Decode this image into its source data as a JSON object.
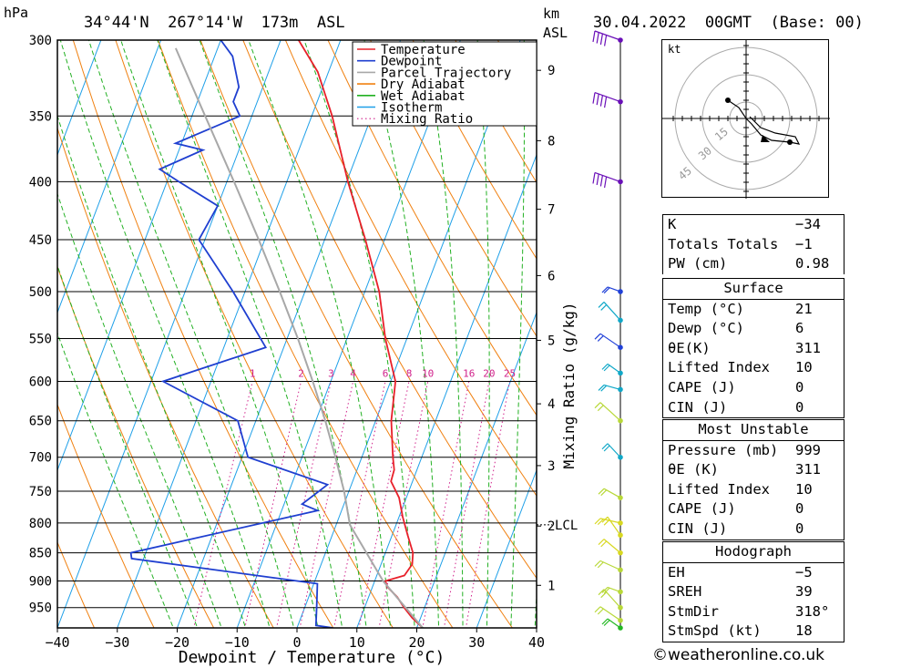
{
  "header": {
    "pressure_unit": "hPa",
    "location": "34°44'N  267°14'W  173m  ASL",
    "km_unit": "km",
    "asl_unit": "ASL",
    "datetime": "30.04.2022  00GMT  (Base: 00)"
  },
  "chart_data": {
    "type": "line",
    "title": "",
    "xlabel": "Dewpoint / Temperature (°C)",
    "ylabel": "hPa",
    "right_label": "Mixing Ratio (g/kg)",
    "xlim": [
      -40,
      40
    ],
    "ylim": [
      990,
      300
    ],
    "y_scale": "log",
    "grid": true,
    "pressure_ticks": [
      300,
      350,
      400,
      450,
      500,
      550,
      600,
      650,
      700,
      750,
      800,
      850,
      900,
      950
    ],
    "temperature_ticks": [
      -40,
      -30,
      -20,
      -10,
      0,
      10,
      20,
      30,
      40
    ],
    "temperature_tick_labels": [
      "−40",
      "−30",
      "−20",
      "−10",
      "0",
      "10",
      "20",
      "30",
      "40"
    ],
    "km_ticks": [
      {
        "label": "9",
        "p": 319
      },
      {
        "label": "8",
        "p": 368
      },
      {
        "label": "7",
        "p": 423
      },
      {
        "label": "6",
        "p": 484
      },
      {
        "label": "5",
        "p": 552
      },
      {
        "label": "4",
        "p": 628
      },
      {
        "label": "3",
        "p": 712
      },
      {
        "label": "2",
        "p": 805
      },
      {
        "label": "1",
        "p": 908
      }
    ],
    "lcl": {
      "label": "LCL",
      "p": 803
    },
    "mixing_ratio_labels": [
      {
        "label": "1",
        "value": 1
      },
      {
        "label": "2",
        "value": 2
      },
      {
        "label": "3",
        "value": 3
      },
      {
        "label": "4",
        "value": 4
      },
      {
        "label": "6",
        "value": 6
      },
      {
        "label": "8",
        "value": 8
      },
      {
        "label": "10",
        "value": 10
      },
      {
        "label": "16",
        "value": 16
      },
      {
        "label": "20",
        "value": 20
      },
      {
        "label": "25",
        "value": 25
      }
    ],
    "legend": {
      "placement": "top-center",
      "entries": [
        {
          "name": "Temperature",
          "color": "#e8202a",
          "style": "solid"
        },
        {
          "name": "Dewpoint",
          "color": "#1f3fd0",
          "style": "solid"
        },
        {
          "name": "Parcel Trajectory",
          "color": "#a8a8a8",
          "style": "solid"
        },
        {
          "name": "Dry Adiabat",
          "color": "#f08010",
          "style": "solid"
        },
        {
          "name": "Wet Adiabat",
          "color": "#22b022",
          "style": "solid"
        },
        {
          "name": "Isotherm",
          "color": "#1fa0e8",
          "style": "solid"
        },
        {
          "name": "Mixing Ratio",
          "color": "#d0208a",
          "style": "dotted"
        }
      ]
    },
    "series": [
      {
        "name": "Temperature",
        "color": "#e8202a",
        "points": [
          [
            990,
            21
          ],
          [
            970,
            18.6
          ],
          [
            950,
            16.6
          ],
          [
            930,
            14.8
          ],
          [
            910,
            12.4
          ],
          [
            900,
            11.8
          ],
          [
            890,
            14.6
          ],
          [
            870,
            15.2
          ],
          [
            850,
            14.6
          ],
          [
            820,
            12.6
          ],
          [
            790,
            10.6
          ],
          [
            760,
            8.8
          ],
          [
            735,
            6.4
          ],
          [
            718,
            6.2
          ],
          [
            700,
            5.2
          ],
          [
            650,
            2.6
          ],
          [
            600,
            0.8
          ],
          [
            550,
            -3.6
          ],
          [
            500,
            -7.6
          ],
          [
            450,
            -13.2
          ],
          [
            400,
            -19.8
          ],
          [
            350,
            -26.6
          ],
          [
            320,
            -31.8
          ],
          [
            300,
            -37
          ]
        ]
      },
      {
        "name": "Dewpoint",
        "color": "#1f3fd0",
        "points": [
          [
            990,
            6
          ],
          [
            985,
            3
          ],
          [
            950,
            2
          ],
          [
            905,
            0.6
          ],
          [
            860,
            -32
          ],
          [
            850,
            -32.5
          ],
          [
            780,
            -4
          ],
          [
            770,
            -7
          ],
          [
            740,
            -4
          ],
          [
            700,
            -19
          ],
          [
            650,
            -23
          ],
          [
            600,
            -38
          ],
          [
            560,
            -23
          ],
          [
            500,
            -32
          ],
          [
            450,
            -41
          ],
          [
            420,
            -40
          ],
          [
            400,
            -48
          ],
          [
            390,
            -52
          ],
          [
            375,
            -46
          ],
          [
            370,
            -51
          ],
          [
            350,
            -42
          ],
          [
            340,
            -44
          ],
          [
            330,
            -44
          ],
          [
            310,
            -47
          ],
          [
            300,
            -50
          ]
        ]
      },
      {
        "name": "Parcel Trajectory",
        "color": "#a8a8a8",
        "points": [
          [
            990,
            21
          ],
          [
            900,
            11.4
          ],
          [
            803,
            2.3
          ],
          [
            750,
            -0.8
          ],
          [
            700,
            -4.4
          ],
          [
            650,
            -8.4
          ],
          [
            600,
            -13
          ],
          [
            550,
            -18.2
          ],
          [
            500,
            -24.2
          ],
          [
            450,
            -31
          ],
          [
            400,
            -38.8
          ],
          [
            350,
            -47.8
          ],
          [
            320,
            -53.8
          ],
          [
            305,
            -57
          ]
        ]
      }
    ],
    "wind_barbs": [
      {
        "p": 300,
        "color": "#6a0fb8"
      },
      {
        "p": 340,
        "color": "#6a0fb8"
      },
      {
        "p": 400,
        "color": "#6a0fb8"
      },
      {
        "p": 500,
        "color": "#2040d8"
      },
      {
        "p": 530,
        "color": "#10a8c8"
      },
      {
        "p": 560,
        "color": "#2040d8"
      },
      {
        "p": 590,
        "color": "#10a8c8"
      },
      {
        "p": 610,
        "color": "#10a8c8"
      },
      {
        "p": 650,
        "color": "#b8d838"
      },
      {
        "p": 700,
        "color": "#10a8c8"
      },
      {
        "p": 760,
        "color": "#b8d838"
      },
      {
        "p": 800,
        "color": "#d8d820"
      },
      {
        "p": 820,
        "color": "#d8d820"
      },
      {
        "p": 850,
        "color": "#d8d820"
      },
      {
        "p": 880,
        "color": "#b8d838"
      },
      {
        "p": 920,
        "color": "#b8d838"
      },
      {
        "p": 950,
        "color": "#b8d838"
      },
      {
        "p": 975,
        "color": "#b8d838"
      },
      {
        "p": 990,
        "color": "#22b822"
      }
    ]
  },
  "hodograph": {
    "unit": "kt",
    "ring_labels": [
      "15",
      "30",
      "45"
    ]
  },
  "indices": {
    "k_label": "K",
    "k_value": "−34",
    "tt_label": "Totals Totals",
    "tt_value": "−1",
    "pw_label": "PW (cm)",
    "pw_value": "0.98"
  },
  "surface": {
    "title": "Surface",
    "temp_label": "Temp (°C)",
    "temp_value": "21",
    "dewp_label": "Dewp (°C)",
    "dewp_value": "6",
    "theta_label": "θE(K)",
    "theta_value": "311",
    "li_label": "Lifted Index",
    "li_value": "10",
    "cape_label": "CAPE (J)",
    "cape_value": "0",
    "cin_label": "CIN (J)",
    "cin_value": "0"
  },
  "most_unstable": {
    "title": "Most Unstable",
    "pressure_label": "Pressure (mb)",
    "pressure_value": "999",
    "theta_label": "θE (K)",
    "theta_value": "311",
    "li_label": "Lifted Index",
    "li_value": "10",
    "cape_label": "CAPE (J)",
    "cape_value": "0",
    "cin_label": "CIN (J)",
    "cin_value": "0"
  },
  "hodograph_params": {
    "title": "Hodograph",
    "eh_label": "EH",
    "eh_value": "−5",
    "sreh_label": "SREH",
    "sreh_value": "39",
    "stmdir_label": "StmDir",
    "stmdir_value": "318°",
    "stmspd_label": "StmSpd (kt)",
    "stmspd_value": "18"
  },
  "copyright": "©weatheronline.co.uk"
}
